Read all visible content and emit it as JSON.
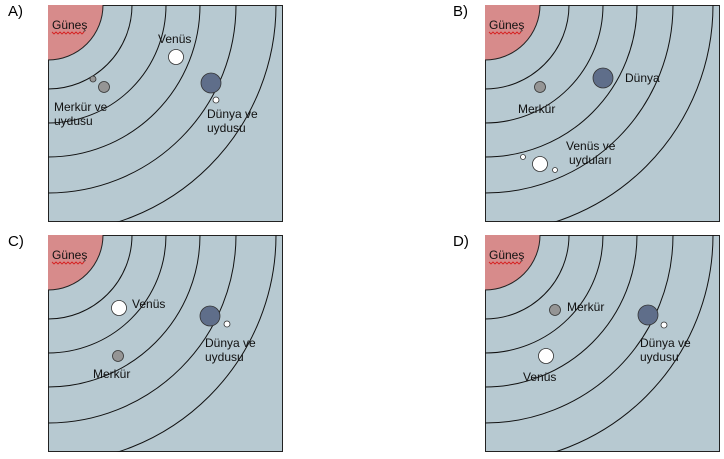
{
  "options": [
    {
      "letter": "A)",
      "sun": "Güneş",
      "labels": {
        "merkur_1": "Merkür ve",
        "merkur_2": "uydusu",
        "venus": "Venüs",
        "dunya_1": "Dünya ve",
        "dunya_2": "uydusu"
      }
    },
    {
      "letter": "B)",
      "sun": "Güneş",
      "labels": {
        "merkur": "Merkür",
        "dunya": "Dünya",
        "venus_1": "Venüs ve",
        "venus_2": "uyduları"
      }
    },
    {
      "letter": "C)",
      "sun": "Güneş",
      "labels": {
        "venus": "Venüs",
        "merkur": "Merkür",
        "dunya_1": "Dünya ve",
        "dunya_2": "uydusu"
      }
    },
    {
      "letter": "D)",
      "sun": "Güneş",
      "labels": {
        "merkur": "Merkür",
        "venus": "Venüs",
        "dunya_1": "Dünya ve",
        "dunya_2": "uydusu"
      }
    }
  ],
  "colors": {
    "background": "#b7c9d1",
    "sun": "#d78b8b",
    "earth": "#5f6e8a",
    "mercury": "#959595",
    "venus": "#ffffff",
    "orbit": "#111111",
    "spellcheck_underline": "#d62020"
  }
}
